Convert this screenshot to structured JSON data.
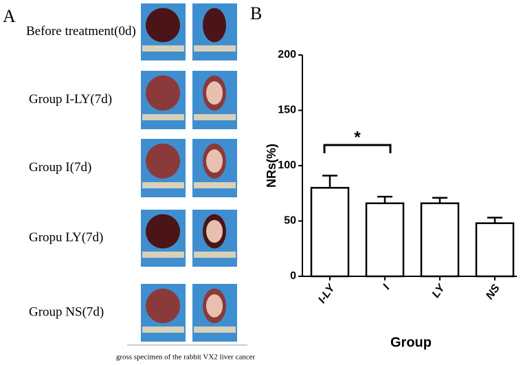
{
  "panel_labels": [
    "A",
    "B"
  ],
  "panel_a": {
    "rows": [
      "Before treatment(0d)",
      "Group I-LY(7d)",
      "Group I(7d)",
      "Gropu LY(7d)",
      "Group NS(7d)"
    ],
    "caption": "gross specimen of the rabbit VX2 liver cancer"
  },
  "chart_data": {
    "type": "bar",
    "categories": [
      "I-LY",
      "I",
      "LY",
      "NS"
    ],
    "values": [
      80,
      66,
      66,
      48
    ],
    "errors": [
      11,
      6,
      5,
      5
    ],
    "color": "#ffffff",
    "x_label": "Group",
    "y_label": "NRs(%)",
    "annotation": "*",
    "ylim": [
      0,
      200
    ],
    "yticks": [
      0,
      50,
      100,
      150,
      200
    ]
  }
}
